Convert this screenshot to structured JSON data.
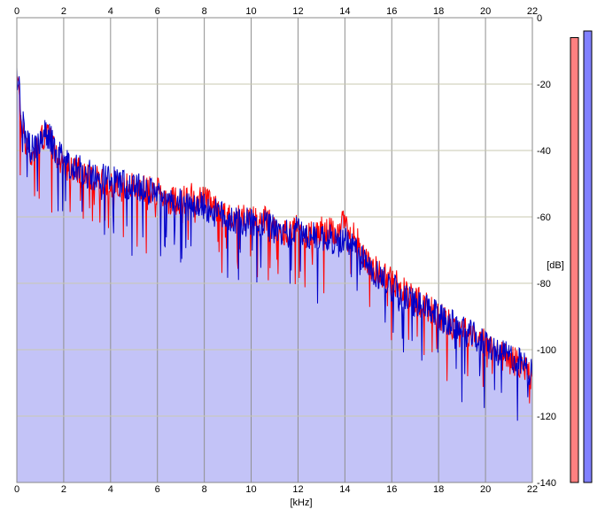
{
  "chart_data": {
    "type": "area",
    "title": "",
    "xlabel": "[kHz]",
    "ylabel": "[dB]",
    "xlim": [
      0,
      22
    ],
    "ylim": [
      -140,
      0
    ],
    "x_ticks": [
      "0",
      "2",
      "4",
      "6",
      "8",
      "10",
      "12",
      "14",
      "16",
      "18",
      "20",
      "22"
    ],
    "y_ticks": [
      "0",
      "-20",
      "-40",
      "-60",
      "-80",
      "-100",
      "-120",
      "-140"
    ],
    "grid": true,
    "series": [
      {
        "color": "#ff0000",
        "x": [
          0.0,
          0.1,
          0.2,
          0.4,
          0.6,
          0.8,
          1.0,
          1.2,
          1.4,
          1.6,
          1.8,
          2.0,
          2.5,
          3.0,
          3.5,
          4.0,
          4.5,
          5.0,
          5.5,
          6.0,
          6.5,
          7.0,
          7.5,
          8.0,
          8.5,
          9.0,
          9.5,
          10.0,
          10.5,
          11.0,
          11.5,
          12.0,
          12.5,
          13.0,
          13.5,
          14.0,
          14.5,
          15.0,
          15.5,
          16.0,
          16.5,
          17.0,
          17.5,
          18.0,
          18.5,
          19.0,
          19.5,
          20.0,
          20.5,
          21.0,
          21.5,
          22.0
        ],
        "values": [
          -18,
          -24,
          -32,
          -38,
          -42,
          -40,
          -37,
          -35,
          -36,
          -40,
          -42,
          -44,
          -46,
          -48,
          -49,
          -50,
          -51,
          -51,
          -52,
          -52,
          -55,
          -55,
          -54,
          -55,
          -58,
          -60,
          -60,
          -61,
          -60,
          -64,
          -65,
          -63,
          -66,
          -64,
          -65,
          -62,
          -67,
          -74,
          -77,
          -79,
          -82,
          -85,
          -87,
          -90,
          -92,
          -94,
          -95,
          -98,
          -101,
          -103,
          -104,
          -108
        ]
      },
      {
        "color": "#0000c8",
        "x": [
          0.0,
          0.1,
          0.2,
          0.4,
          0.6,
          0.8,
          1.0,
          1.2,
          1.4,
          1.6,
          1.8,
          2.0,
          2.5,
          3.0,
          3.5,
          4.0,
          4.5,
          5.0,
          5.5,
          6.0,
          6.5,
          7.0,
          7.5,
          8.0,
          8.5,
          9.0,
          9.5,
          10.0,
          10.5,
          11.0,
          11.5,
          12.0,
          12.5,
          13.0,
          13.5,
          14.0,
          14.5,
          15.0,
          15.5,
          16.0,
          16.5,
          17.0,
          17.5,
          18.0,
          18.5,
          19.0,
          19.5,
          20.0,
          20.5,
          21.0,
          21.5,
          22.0
        ],
        "values": [
          -16,
          -22,
          -30,
          -36,
          -40,
          -39,
          -37,
          -35,
          -36,
          -39,
          -41,
          -43,
          -45,
          -47,
          -48,
          -49,
          -50,
          -51,
          -52,
          -53,
          -55,
          -56,
          -56,
          -57,
          -59,
          -60,
          -61,
          -62,
          -62,
          -64,
          -65,
          -64,
          -66,
          -66,
          -67,
          -67,
          -70,
          -75,
          -78,
          -81,
          -84,
          -86,
          -88,
          -90,
          -92,
          -94,
          -96,
          -98,
          -101,
          -102,
          -104,
          -107
        ]
      }
    ],
    "level_meters": [
      {
        "color": "#ff8080",
        "level_db": -6
      },
      {
        "color": "#8080ff",
        "level_db": -4
      }
    ]
  }
}
